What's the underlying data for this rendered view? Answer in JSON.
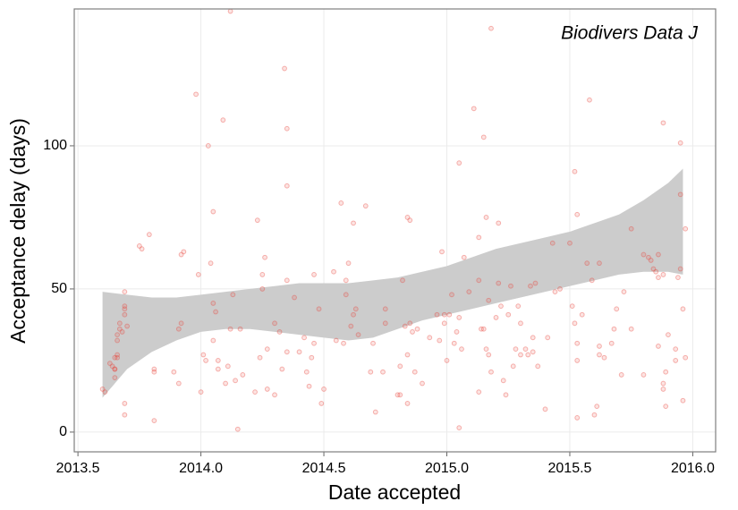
{
  "chart_data": {
    "type": "scatter",
    "annotation": "Biodivers Data J",
    "x_label": "Date accepted",
    "y_label": "Acceptance delay (days)",
    "xlim": [
      2013.485,
      2016.093
    ],
    "ylim": [
      -6.9,
      147.8
    ],
    "xticks": [
      2013.5,
      {
        "value": 2014,
        "label": "2014.0"
      },
      2014.5,
      {
        "value": 2015,
        "label": "2015.0"
      },
      2015.5,
      {
        "value": 2016,
        "label": "2016.0"
      }
    ],
    "yticks": [
      0,
      50,
      100
    ],
    "grid": true,
    "color": "#e8473f",
    "band_color": "#cccccc",
    "x": [
      2013.6,
      2013.61,
      2013.63,
      2013.64,
      2013.65,
      2013.65,
      2013.66,
      2013.66,
      2013.66,
      2013.67,
      2013.67,
      2013.68,
      2013.69,
      2013.69,
      2013.69,
      2013.69,
      2013.7,
      2013.69,
      2013.69,
      2013.65,
      2013.65,
      2013.66,
      2013.75,
      2013.76,
      2013.79,
      2013.81,
      2013.81,
      2013.81,
      2013.89,
      2013.91,
      2013.92,
      2013.93,
      2013.92,
      2013.91,
      2013.98,
      2013.99,
      2014.0,
      2014.01,
      2014.02,
      2014.03,
      2014.04,
      2014.05,
      2014.05,
      2014.06,
      2014.05,
      2014.07,
      2014.07,
      2014.09,
      2014.1,
      2014.11,
      2014.12,
      2014.13,
      2014.12,
      2014.15,
      2014.14,
      2014.16,
      2014.17,
      2014.22,
      2014.23,
      2014.24,
      2014.25,
      2014.25,
      2014.26,
      2014.27,
      2014.27,
      2014.3,
      2014.3,
      2014.32,
      2014.33,
      2014.34,
      2014.35,
      2014.35,
      2014.35,
      2014.35,
      2014.38,
      2014.4,
      2014.42,
      2014.43,
      2014.44,
      2014.45,
      2014.46,
      2014.46,
      2014.48,
      2014.49,
      2014.5,
      2014.54,
      2014.55,
      2014.57,
      2014.58,
      2014.59,
      2014.59,
      2014.6,
      2014.61,
      2014.62,
      2014.62,
      2014.63,
      2014.64,
      2014.67,
      2014.69,
      2014.7,
      2014.71,
      2014.74,
      2014.75,
      2014.75,
      2014.8,
      2014.81,
      2014.81,
      2014.82,
      2014.83,
      2014.84,
      2014.84,
      2014.84,
      2014.85,
      2014.85,
      2014.86,
      2014.87,
      2014.88,
      2014.9,
      2014.93,
      2014.96,
      2014.97,
      2014.98,
      2014.99,
      2014.99,
      2015.0,
      2015.01,
      2015.02,
      2015.03,
      2015.04,
      2015.05,
      2015.05,
      2015.05,
      2015.06,
      2015.07,
      2015.09,
      2015.11,
      2015.13,
      2015.13,
      2015.13,
      2015.14,
      2015.15,
      2015.15,
      2015.16,
      2015.16,
      2015.17,
      2015.17,
      2015.18,
      2015.18,
      2015.2,
      2015.21,
      2015.21,
      2015.22,
      2015.23,
      2015.24,
      2015.25,
      2015.26,
      2015.27,
      2015.28,
      2015.29,
      2015.3,
      2015.3,
      2015.32,
      2015.33,
      2015.34,
      2015.35,
      2015.35,
      2015.36,
      2015.37,
      2015.4,
      2015.41,
      2015.43,
      2015.44,
      2015.46,
      2015.5,
      2015.51,
      2015.52,
      2015.52,
      2015.53,
      2015.53,
      2015.53,
      2015.53,
      2015.55,
      2015.57,
      2015.58,
      2015.59,
      2015.6,
      2015.61,
      2015.62,
      2015.62,
      2015.62,
      2015.64,
      2015.67,
      2015.68,
      2015.69,
      2015.71,
      2015.72,
      2015.75,
      2015.75,
      2015.8,
      2015.8,
      2015.82,
      2015.83,
      2015.84,
      2015.85,
      2015.86,
      2015.86,
      2015.86,
      2015.88,
      2015.88,
      2015.88,
      2015.89,
      2015.9,
      2015.93,
      2015.93,
      2015.94,
      2015.95,
      2015.95,
      2015.95,
      2015.96,
      2015.96,
      2015.97,
      2015.97,
      2015.89,
      2015.88
    ],
    "values": [
      15,
      14,
      24,
      23,
      22,
      26,
      27,
      26,
      34,
      36,
      38,
      35,
      44,
      43,
      41,
      49,
      37,
      10,
      6,
      19,
      22,
      32,
      65,
      64,
      69,
      22,
      21,
      4,
      21,
      17,
      62,
      63,
      38,
      36,
      118,
      55,
      14,
      27,
      25,
      100,
      59,
      77,
      45,
      42,
      32,
      25,
      22,
      109,
      17,
      23,
      147,
      48,
      36,
      1,
      18,
      36,
      20,
      14,
      74,
      26,
      50,
      55,
      61,
      29,
      15,
      38,
      13,
      35,
      22,
      127,
      86,
      106,
      53,
      28,
      47,
      28,
      33,
      21,
      16,
      26,
      31,
      55,
      43,
      10,
      15,
      56,
      32,
      80,
      31,
      48,
      53,
      59,
      37,
      41,
      73,
      43,
      34,
      79,
      21,
      31,
      7,
      21,
      43,
      38,
      13,
      13,
      23,
      53,
      37,
      75,
      27,
      10,
      74,
      38,
      35,
      21,
      36,
      17,
      33,
      41,
      32,
      63,
      38,
      41,
      25,
      41,
      48,
      31,
      35,
      40,
      1.5,
      94,
      29,
      61,
      49,
      113,
      14,
      68,
      53,
      36,
      103,
      36,
      75,
      29,
      46,
      27,
      141,
      21,
      40,
      52,
      73,
      44,
      18,
      13,
      41,
      51,
      23,
      29,
      44,
      38,
      27,
      29,
      27,
      51,
      33,
      28,
      52,
      23,
      8,
      33,
      66,
      49,
      50,
      66,
      44,
      38,
      91,
      76,
      31,
      25,
      5,
      41,
      59,
      116,
      53,
      6,
      9,
      59,
      30,
      27,
      26,
      31,
      36,
      43,
      20,
      49,
      71,
      36,
      62,
      20,
      61,
      60,
      57,
      56,
      54,
      62,
      30,
      17,
      108,
      15,
      9,
      34,
      29,
      25,
      54,
      57,
      101,
      83,
      11,
      43,
      26,
      71,
      21,
      55
    ],
    "band": {
      "x": [
        2013.6,
        2013.7,
        2013.8,
        2013.9,
        2014.0,
        2014.1,
        2014.2,
        2014.3,
        2014.4,
        2014.5,
        2014.6,
        2014.7,
        2014.8,
        2014.9,
        2015.0,
        2015.1,
        2015.2,
        2015.3,
        2015.4,
        2015.5,
        2015.6,
        2015.7,
        2015.8,
        2015.9,
        2015.96
      ],
      "upper": [
        49,
        48,
        47,
        47,
        48,
        49,
        50,
        51,
        52,
        52,
        52,
        53,
        54,
        56,
        58,
        61,
        64,
        66,
        68,
        70,
        73,
        76,
        81,
        87,
        92
      ],
      "lower": [
        12,
        22,
        28,
        32,
        35,
        36,
        36,
        35,
        34,
        33,
        32,
        33,
        36,
        39,
        41,
        43,
        45,
        47,
        49,
        51,
        53,
        55,
        56,
        56,
        55
      ]
    }
  }
}
